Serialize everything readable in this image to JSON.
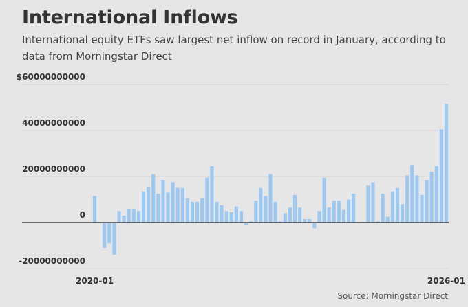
{
  "chart_data": {
    "type": "bar",
    "title": "International Inflows",
    "subtitle": "International equity ETFs saw largest net inflow on record in January, according to data from Morningstar Direct",
    "source": "Source: Morningstar Direct",
    "xlabel": "",
    "ylabel": "",
    "ylim": [
      -20000000000,
      60000000000
    ],
    "y_ticks": [
      {
        "value": 60000000000,
        "label": "$60000000000"
      },
      {
        "value": 40000000000,
        "label": "40000000000"
      },
      {
        "value": 20000000000,
        "label": "20000000000"
      },
      {
        "value": 0,
        "label": "0"
      },
      {
        "value": -20000000000,
        "label": "-20000000000"
      }
    ],
    "x_tick_labels": [
      {
        "category": "2020-01",
        "label": "2020-01"
      },
      {
        "category": "2026-01",
        "label": "2026-01"
      }
    ],
    "grid": true,
    "categories": [
      "2020-01",
      "2020-02",
      "2020-03",
      "2020-04",
      "2020-05",
      "2020-06",
      "2020-07",
      "2020-08",
      "2020-09",
      "2020-10",
      "2020-11",
      "2020-12",
      "2021-01",
      "2021-02",
      "2021-03",
      "2021-04",
      "2021-05",
      "2021-06",
      "2021-07",
      "2021-08",
      "2021-09",
      "2021-10",
      "2021-11",
      "2021-12",
      "2022-01",
      "2022-02",
      "2022-03",
      "2022-04",
      "2022-05",
      "2022-06",
      "2022-07",
      "2022-08",
      "2022-09",
      "2022-10",
      "2022-11",
      "2022-12",
      "2023-01",
      "2023-02",
      "2023-03",
      "2023-04",
      "2023-05",
      "2023-06",
      "2023-07",
      "2023-08",
      "2023-09",
      "2023-10",
      "2023-11",
      "2023-12",
      "2024-01",
      "2024-02",
      "2024-03",
      "2024-04",
      "2024-05",
      "2024-06",
      "2024-07",
      "2024-08",
      "2024-09",
      "2024-10",
      "2024-11",
      "2024-12",
      "2025-01",
      "2025-02",
      "2025-03",
      "2025-04",
      "2025-05",
      "2025-06",
      "2025-07",
      "2025-08",
      "2025-09",
      "2025-10",
      "2025-11",
      "2025-12",
      "2026-01"
    ],
    "series": [
      {
        "name": "Net inflow",
        "color": "#9dc8f2",
        "values": [
          11500000000,
          -300000000,
          -11000000000,
          -9000000000,
          -14000000000,
          5000000000,
          3000000000,
          6000000000,
          6000000000,
          5000000000,
          13500000000,
          15500000000,
          21000000000,
          12500000000,
          18500000000,
          13000000000,
          17500000000,
          15000000000,
          15000000000,
          10500000000,
          9000000000,
          9000000000,
          10500000000,
          19500000000,
          24500000000,
          9000000000,
          7500000000,
          5000000000,
          4500000000,
          7000000000,
          5000000000,
          -1200000000,
          500000000,
          9500000000,
          15000000000,
          11500000000,
          21000000000,
          9000000000,
          500000000,
          4000000000,
          6500000000,
          12000000000,
          6500000000,
          1500000000,
          1500000000,
          -2500000000,
          5000000000,
          19500000000,
          6500000000,
          9500000000,
          9500000000,
          5500000000,
          10000000000,
          12500000000,
          -300000000,
          300000000,
          16000000000,
          17500000000,
          500000000,
          12500000000,
          2500000000,
          13500000000,
          15000000000,
          8000000000,
          20500000000,
          25000000000,
          20500000000,
          12000000000,
          18500000000,
          22000000000,
          24500000000,
          40500000000,
          51500000000
        ]
      }
    ]
  }
}
